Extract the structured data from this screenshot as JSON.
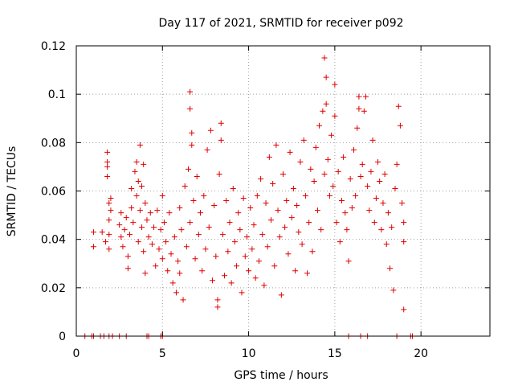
{
  "chart_data": {
    "type": "scatter",
    "title": "Day 117 of 2021, SRMTID for receiver p092",
    "xlabel": "GPS time / hours",
    "ylabel": "SRMTID / TECUs",
    "xlim": [
      0,
      24
    ],
    "ylim": [
      0,
      0.12
    ],
    "xticks": [
      0,
      5,
      10,
      15,
      20
    ],
    "yticks": [
      0,
      0.02,
      0.04,
      0.06,
      0.08,
      0.1,
      0.12
    ],
    "ytick_labels": [
      "0",
      "0.02",
      "0.04",
      "0.06",
      "0.08",
      "0.1",
      "0.12"
    ],
    "marker": "+",
    "series_color": "#e00000",
    "grid": true,
    "series": [
      {
        "name": "SRMTID",
        "points": [
          [
            0.5,
            0
          ],
          [
            0.9,
            0
          ],
          [
            1.0,
            0
          ],
          [
            1.4,
            0
          ],
          [
            1.6,
            0
          ],
          [
            1.9,
            0
          ],
          [
            2.1,
            0
          ],
          [
            2.5,
            0
          ],
          [
            2.9,
            0
          ],
          [
            4.1,
            0
          ],
          [
            4.2,
            0
          ],
          [
            4.9,
            0
          ],
          [
            5.0,
            0
          ],
          [
            15.8,
            0
          ],
          [
            16.5,
            0
          ],
          [
            16.9,
            0
          ],
          [
            18.6,
            0
          ],
          [
            19.4,
            0
          ],
          [
            19.5,
            0
          ],
          [
            1.0,
            0.043
          ],
          [
            1.0,
            0.037
          ],
          [
            1.5,
            0.043
          ],
          [
            1.7,
            0.039
          ],
          [
            1.8,
            0.072
          ],
          [
            1.8,
            0.076
          ],
          [
            1.8,
            0.07
          ],
          [
            1.8,
            0.066
          ],
          [
            1.9,
            0.055
          ],
          [
            1.9,
            0.048
          ],
          [
            1.9,
            0.036
          ],
          [
            1.9,
            0.042
          ],
          [
            2.0,
            0.052
          ],
          [
            2.0,
            0.057
          ],
          [
            2.5,
            0.046
          ],
          [
            2.6,
            0.051
          ],
          [
            2.6,
            0.041
          ],
          [
            2.7,
            0.037
          ],
          [
            2.8,
            0.044
          ],
          [
            2.9,
            0.049
          ],
          [
            3.0,
            0.033
          ],
          [
            3.0,
            0.028
          ],
          [
            3.1,
            0.042
          ],
          [
            3.2,
            0.061
          ],
          [
            3.2,
            0.053
          ],
          [
            3.3,
            0.047
          ],
          [
            3.4,
            0.068
          ],
          [
            3.5,
            0.072
          ],
          [
            3.5,
            0.058
          ],
          [
            3.6,
            0.064
          ],
          [
            3.6,
            0.039
          ],
          [
            3.7,
            0.079
          ],
          [
            3.7,
            0.052
          ],
          [
            3.8,
            0.045
          ],
          [
            3.8,
            0.062
          ],
          [
            3.9,
            0.071
          ],
          [
            3.9,
            0.035
          ],
          [
            4.0,
            0.055
          ],
          [
            4.0,
            0.026
          ],
          [
            4.1,
            0.048
          ],
          [
            4.2,
            0.041
          ],
          [
            4.3,
            0.051
          ],
          [
            4.4,
            0.038
          ],
          [
            4.5,
            0.045
          ],
          [
            4.6,
            0.029
          ],
          [
            4.7,
            0.052
          ],
          [
            4.8,
            0.036
          ],
          [
            4.9,
            0.044
          ],
          [
            5.0,
            0.058
          ],
          [
            5.0,
            0.032
          ],
          [
            5.1,
            0.047
          ],
          [
            5.2,
            0.039
          ],
          [
            5.3,
            0.027
          ],
          [
            5.4,
            0.051
          ],
          [
            5.5,
            0.034
          ],
          [
            5.6,
            0.022
          ],
          [
            5.7,
            0.041
          ],
          [
            5.8,
            0.018
          ],
          [
            5.9,
            0.031
          ],
          [
            6.0,
            0.053
          ],
          [
            6.0,
            0.026
          ],
          [
            6.1,
            0.044
          ],
          [
            6.2,
            0.015
          ],
          [
            6.3,
            0.062
          ],
          [
            6.4,
            0.037
          ],
          [
            6.5,
            0.069
          ],
          [
            6.6,
            0.047
          ],
          [
            6.6,
            0.101
          ],
          [
            6.6,
            0.094
          ],
          [
            6.7,
            0.084
          ],
          [
            6.7,
            0.079
          ],
          [
            6.8,
            0.056
          ],
          [
            6.9,
            0.032
          ],
          [
            7.0,
            0.066
          ],
          [
            7.1,
            0.042
          ],
          [
            7.2,
            0.051
          ],
          [
            7.3,
            0.027
          ],
          [
            7.4,
            0.058
          ],
          [
            7.5,
            0.036
          ],
          [
            7.6,
            0.077
          ],
          [
            7.7,
            0.045
          ],
          [
            7.8,
            0.085
          ],
          [
            7.9,
            0.023
          ],
          [
            8.0,
            0.054
          ],
          [
            8.1,
            0.033
          ],
          [
            8.2,
            0.012
          ],
          [
            8.2,
            0.015
          ],
          [
            8.3,
            0.067
          ],
          [
            8.4,
            0.088
          ],
          [
            8.4,
            0.081
          ],
          [
            8.5,
            0.042
          ],
          [
            8.6,
            0.025
          ],
          [
            8.7,
            0.056
          ],
          [
            8.8,
            0.035
          ],
          [
            8.9,
            0.047
          ],
          [
            9.0,
            0.022
          ],
          [
            9.1,
            0.061
          ],
          [
            9.2,
            0.039
          ],
          [
            9.3,
            0.029
          ],
          [
            9.4,
            0.051
          ],
          [
            9.5,
            0.044
          ],
          [
            9.6,
            0.018
          ],
          [
            9.7,
            0.057
          ],
          [
            9.8,
            0.033
          ],
          [
            9.9,
            0.041
          ],
          [
            10.0,
            0.027
          ],
          [
            10.1,
            0.053
          ],
          [
            10.2,
            0.036
          ],
          [
            10.3,
            0.046
          ],
          [
            10.4,
            0.024
          ],
          [
            10.5,
            0.058
          ],
          [
            10.6,
            0.031
          ],
          [
            10.7,
            0.065
          ],
          [
            10.8,
            0.042
          ],
          [
            10.9,
            0.021
          ],
          [
            11.0,
            0.055
          ],
          [
            11.1,
            0.037
          ],
          [
            11.2,
            0.074
          ],
          [
            11.3,
            0.048
          ],
          [
            11.4,
            0.063
          ],
          [
            11.5,
            0.029
          ],
          [
            11.6,
            0.079
          ],
          [
            11.7,
            0.052
          ],
          [
            11.8,
            0.041
          ],
          [
            11.9,
            0.017
          ],
          [
            12.0,
            0.067
          ],
          [
            12.1,
            0.045
          ],
          [
            12.2,
            0.056
          ],
          [
            12.3,
            0.034
          ],
          [
            12.4,
            0.076
          ],
          [
            12.5,
            0.049
          ],
          [
            12.6,
            0.061
          ],
          [
            12.7,
            0.027
          ],
          [
            12.8,
            0.054
          ],
          [
            12.9,
            0.043
          ],
          [
            13.0,
            0.072
          ],
          [
            13.1,
            0.038
          ],
          [
            13.2,
            0.081
          ],
          [
            13.3,
            0.058
          ],
          [
            13.4,
            0.026
          ],
          [
            13.5,
            0.047
          ],
          [
            13.6,
            0.069
          ],
          [
            13.7,
            0.035
          ],
          [
            13.8,
            0.064
          ],
          [
            13.9,
            0.078
          ],
          [
            14.0,
            0.052
          ],
          [
            14.1,
            0.087
          ],
          [
            14.2,
            0.044
          ],
          [
            14.3,
            0.093
          ],
          [
            14.4,
            0.067
          ],
          [
            14.4,
            0.115
          ],
          [
            14.5,
            0.107
          ],
          [
            14.5,
            0.096
          ],
          [
            14.6,
            0.073
          ],
          [
            14.7,
            0.058
          ],
          [
            14.8,
            0.083
          ],
          [
            14.9,
            0.062
          ],
          [
            15.0,
            0.104
          ],
          [
            15.0,
            0.091
          ],
          [
            15.1,
            0.047
          ],
          [
            15.2,
            0.068
          ],
          [
            15.3,
            0.039
          ],
          [
            15.4,
            0.056
          ],
          [
            15.5,
            0.074
          ],
          [
            15.6,
            0.051
          ],
          [
            15.7,
            0.044
          ],
          [
            15.8,
            0.031
          ],
          [
            15.9,
            0.065
          ],
          [
            16.0,
            0.053
          ],
          [
            16.1,
            0.077
          ],
          [
            16.2,
            0.058
          ],
          [
            16.3,
            0.086
          ],
          [
            16.4,
            0.099
          ],
          [
            16.4,
            0.094
          ],
          [
            16.5,
            0.066
          ],
          [
            16.6,
            0.071
          ],
          [
            16.7,
            0.093
          ],
          [
            16.8,
            0.099
          ],
          [
            16.9,
            0.062
          ],
          [
            17.0,
            0.052
          ],
          [
            17.1,
            0.068
          ],
          [
            17.2,
            0.081
          ],
          [
            17.3,
            0.047
          ],
          [
            17.4,
            0.057
          ],
          [
            17.5,
            0.072
          ],
          [
            17.6,
            0.064
          ],
          [
            17.7,
            0.044
          ],
          [
            17.8,
            0.055
          ],
          [
            17.9,
            0.067
          ],
          [
            18.0,
            0.038
          ],
          [
            18.1,
            0.051
          ],
          [
            18.2,
            0.028
          ],
          [
            18.3,
            0.045
          ],
          [
            18.4,
            0.019
          ],
          [
            18.5,
            0.061
          ],
          [
            18.6,
            0.071
          ],
          [
            18.7,
            0.095
          ],
          [
            18.8,
            0.087
          ],
          [
            18.9,
            0.055
          ],
          [
            19.0,
            0.047
          ],
          [
            19.0,
            0.039
          ],
          [
            19.0,
            0.011
          ]
        ]
      }
    ]
  }
}
